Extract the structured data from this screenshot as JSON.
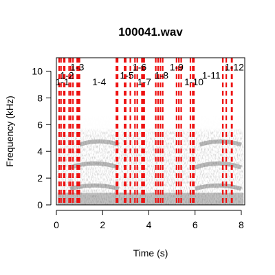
{
  "chart_data": {
    "type": "spectrogram",
    "title": "100041.wav",
    "xlabel": "Time (s)",
    "ylabel": "Frequency (kHz)",
    "xlim": [
      0,
      8.15
    ],
    "ylim": [
      0,
      11
    ],
    "xticks": [
      0,
      2,
      4,
      6,
      8
    ],
    "yticks": [
      0,
      2,
      4,
      6,
      8,
      10
    ],
    "grid": false,
    "segment_line_color": "#ee1111",
    "segments": [
      {
        "label": "1-1",
        "start": 0.2,
        "end": 0.32,
        "label_x": 0.26,
        "label_y": 9.2
      },
      {
        "label": "1-2",
        "start": 0.36,
        "end": 0.55,
        "label_x": 0.46,
        "label_y": 9.7
      },
      {
        "label": "1-3",
        "start": 0.72,
        "end": 0.9,
        "label_x": 0.9,
        "label_y": 10.3
      },
      {
        "label": "1-4",
        "start": 1.0,
        "end": 2.6,
        "label_x": 1.85,
        "label_y": 9.2
      },
      {
        "label": "1-5",
        "start": 2.65,
        "end": 2.95,
        "label_x": 3.05,
        "label_y": 9.7
      },
      {
        "label": "1-6",
        "start": 3.2,
        "end": 3.4,
        "label_x": 3.6,
        "label_y": 10.3
      },
      {
        "label": "1-7",
        "start": 3.5,
        "end": 3.7,
        "label_x": 3.8,
        "label_y": 9.2
      },
      {
        "label": "1-8",
        "start": 3.8,
        "end": 4.4,
        "label_x": 4.55,
        "label_y": 9.7
      },
      {
        "label": "1-9",
        "start": 4.5,
        "end": 5.2,
        "label_x": 5.2,
        "label_y": 10.3
      },
      {
        "label": "1-10",
        "start": 5.4,
        "end": 5.8,
        "label_x": 5.95,
        "label_y": 9.2
      },
      {
        "label": "1-11",
        "start": 5.9,
        "end": 7.2,
        "label_x": 6.7,
        "label_y": 9.7
      },
      {
        "label": "1-12",
        "start": 7.35,
        "end": 7.6,
        "label_x": 7.7,
        "label_y": 10.3
      }
    ],
    "extra_lines": [
      0.12,
      0.62,
      0.95,
      2.6,
      3.0,
      3.75,
      4.3,
      4.6,
      5.3,
      5.95,
      7.2,
      7.58
    ]
  }
}
